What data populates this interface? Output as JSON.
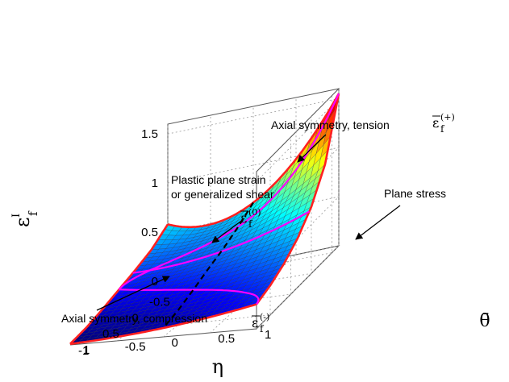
{
  "chart_data": {
    "type": "surface3d",
    "x": {
      "label": "η",
      "range": [
        -0.6666667,
        1.3333333
      ],
      "tick_values": [
        -0.5,
        0,
        0.5,
        1
      ],
      "tick_labels": [
        "-0.5",
        "0",
        "0.5",
        "1"
      ]
    },
    "y": {
      "label": "θ̄",
      "range": [
        -1,
        1
      ],
      "tick_values": [
        -1,
        -0.5,
        0,
        0.5,
        1
      ],
      "tick_labels": [
        "-1",
        "-0.5",
        "0",
        "0.5",
        "1"
      ]
    },
    "z": {
      "label": "ε",
      "label_superscript": "I",
      "label_subscript": "f",
      "range": [
        0,
        1.6
      ],
      "tick_values": [
        0,
        0.5,
        1,
        1.5
      ],
      "tick_labels": [
        "0",
        "0.5",
        "1",
        "1.5"
      ]
    },
    "grid": true,
    "colormap": "jet",
    "surface_samples": {
      "description_eta": [
        -0.6666667,
        -0.3333333,
        0,
        0.3333333,
        0.6666667,
        1.0,
        1.3333333
      ],
      "theta_minus1": [
        0.58,
        0.43,
        0.33,
        0.24,
        0.15,
        0.07,
        0.01
      ],
      "theta_0": [
        0.62,
        0.5,
        0.4,
        0.32,
        0.23,
        0.15,
        0.09
      ],
      "theta_plus1": [
        1.55,
        0.97,
        0.68,
        0.5,
        0.38,
        0.3,
        0.25
      ]
    },
    "curves": [
      {
        "name": "Axial symmetry, tension",
        "color": "#ff2020",
        "theta": 1
      },
      {
        "name": "Axial symmetry, compression",
        "color": "#ff2020",
        "theta": -1
      },
      {
        "name": "Plastic plane strain or generalized shear",
        "color": "#ff00ff",
        "theta": 0
      },
      {
        "name": "Plane stress",
        "color": "#ff00ff"
      },
      {
        "name": "ε̄f(0)",
        "color": "#000000",
        "style": "dashed",
        "theta": 0
      }
    ],
    "annotations": [
      {
        "lines": [
          "Axial symmetry, tension"
        ]
      },
      {
        "lines": [
          "Plastic plane strain",
          "or generalized shear"
        ]
      },
      {
        "lines": [
          "Plane stress"
        ]
      },
      {
        "lines": [
          "Axial symmetry, compression"
        ]
      }
    ],
    "curve_symbols": {
      "tension": {
        "base": "ε",
        "sub": "f",
        "sup": "(+)"
      },
      "zero": {
        "base": "ε",
        "sub": "f",
        "sup": "(0)"
      },
      "compression": {
        "base": "ε",
        "sub": "f",
        "sup": "(-)"
      }
    }
  }
}
